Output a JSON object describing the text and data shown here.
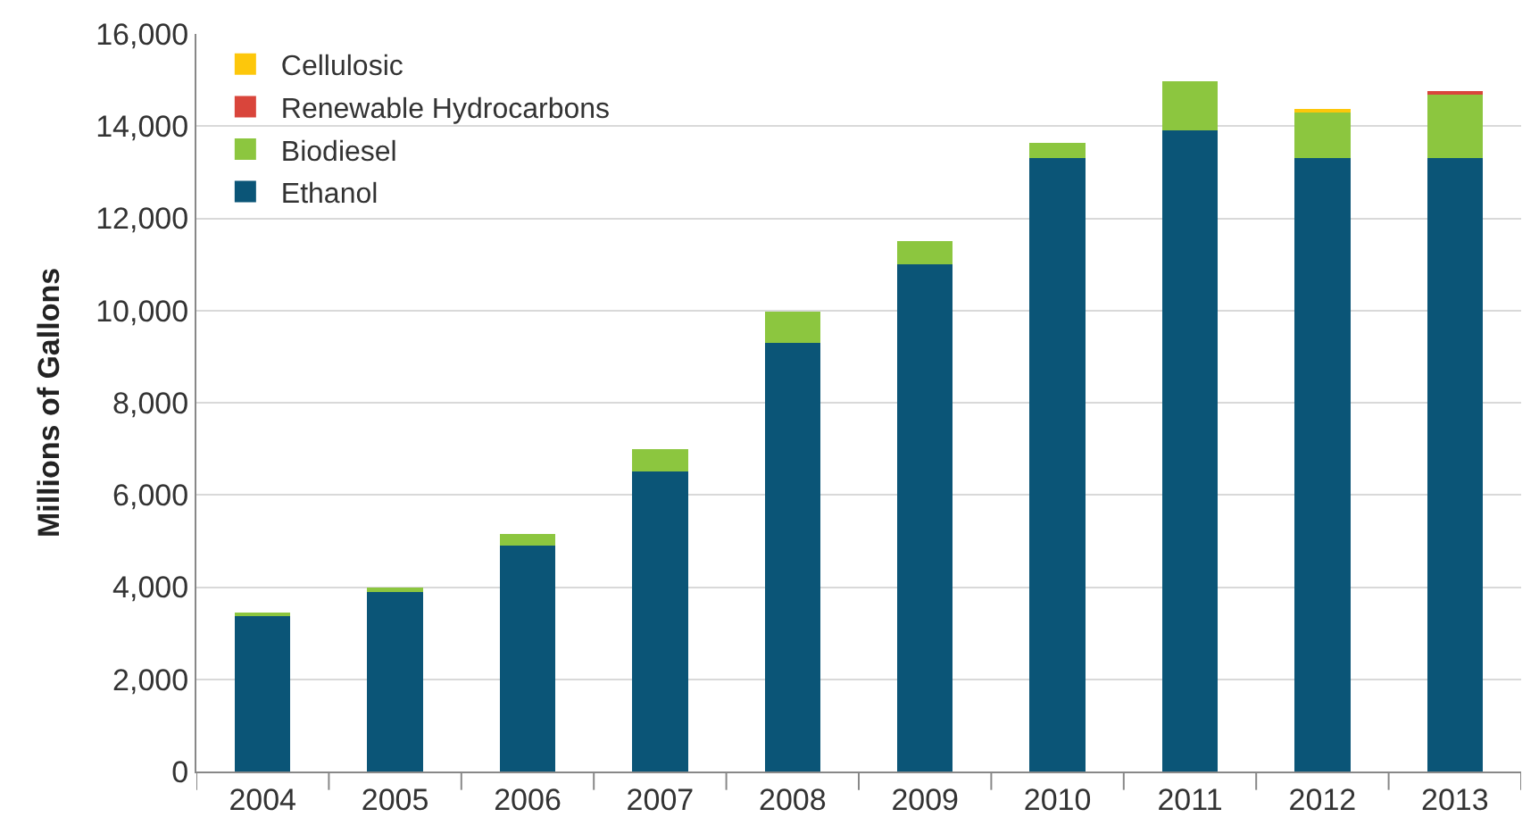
{
  "chart_data": {
    "type": "bar",
    "stacked": true,
    "ylabel": "Millions of Gallons",
    "categories": [
      "2004",
      "2005",
      "2006",
      "2007",
      "2008",
      "2009",
      "2010",
      "2011",
      "2012",
      "2013"
    ],
    "series": [
      {
        "name": "Ethanol",
        "color": "#0b5577",
        "values": [
          3400,
          3900,
          4900,
          6500,
          9300,
          11000,
          13300,
          13900,
          13300,
          13300
        ]
      },
      {
        "name": "Biodiesel",
        "color": "#8cc63f",
        "values": [
          30,
          100,
          250,
          490,
          680,
          500,
          340,
          1070,
          1000,
          1400
        ]
      },
      {
        "name": "Renewable Hydrocarbons",
        "color": "#d9453b",
        "values": [
          0,
          0,
          0,
          0,
          0,
          0,
          0,
          0,
          0,
          60
        ]
      },
      {
        "name": "Cellulosic",
        "color": "#fdc70b",
        "values": [
          0,
          0,
          0,
          0,
          0,
          0,
          0,
          0,
          40,
          0
        ]
      }
    ],
    "ylim": [
      0,
      16000
    ],
    "yticks": [
      {
        "value": 0,
        "label": "0"
      },
      {
        "value": 2000,
        "label": "2,000"
      },
      {
        "value": 4000,
        "label": "4,000"
      },
      {
        "value": 6000,
        "label": "6,000"
      },
      {
        "value": 8000,
        "label": "8,000"
      },
      {
        "value": 10000,
        "label": "10,000"
      },
      {
        "value": 12000,
        "label": "12,000"
      },
      {
        "value": 14000,
        "label": "14,000"
      },
      {
        "value": 16000,
        "label": "16,000"
      }
    ],
    "grid": "y",
    "legend": "top left"
  }
}
